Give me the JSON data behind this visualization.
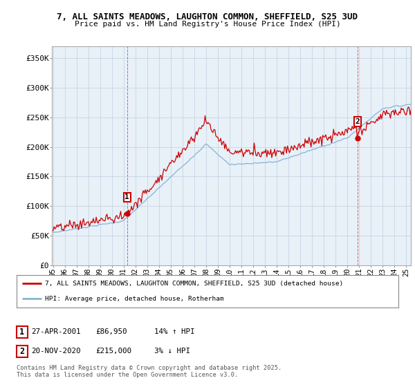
{
  "title_line1": "7, ALL SAINTS MEADOWS, LAUGHTON COMMON, SHEFFIELD, S25 3UD",
  "title_line2": "Price paid vs. HM Land Registry's House Price Index (HPI)",
  "ylabel_ticks": [
    "£0",
    "£50K",
    "£100K",
    "£150K",
    "£200K",
    "£250K",
    "£300K",
    "£350K"
  ],
  "ytick_vals": [
    0,
    50000,
    100000,
    150000,
    200000,
    250000,
    300000,
    350000
  ],
  "ylim": [
    0,
    370000
  ],
  "sale1_year": 2001.29,
  "sale1_price": 86950,
  "sale2_year": 2020.87,
  "sale2_price": 215000,
  "legend_line1": "7, ALL SAINTS MEADOWS, LAUGHTON COMMON, SHEFFIELD, S25 3UD (detached house)",
  "legend_line2": "HPI: Average price, detached house, Rotherham",
  "footer": "Contains HM Land Registry data © Crown copyright and database right 2025.\nThis data is licensed under the Open Government Licence v3.0.",
  "house_color": "#cc0000",
  "hpi_color": "#85b4d4",
  "vline_color": "#cc0000",
  "background_color": "#ffffff",
  "plot_bg_color": "#e8f0f8",
  "grid_color": "#c0cfe0"
}
